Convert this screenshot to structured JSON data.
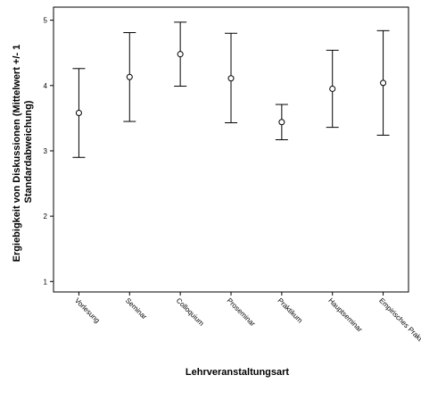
{
  "chart_data": {
    "type": "errorbar",
    "categories": [
      "Vorlesung",
      "Seminar",
      "Colloquium",
      "Proseminar",
      "Praktikum",
      "Hauptseminar",
      "Empirisches Prakt"
    ],
    "series": [
      {
        "mean": [
          3.58,
          4.13,
          4.48,
          4.11,
          3.44,
          3.95,
          4.04
        ],
        "lower": [
          2.9,
          3.45,
          3.99,
          3.43,
          3.17,
          3.36,
          3.24
        ],
        "upper": [
          4.26,
          4.81,
          4.97,
          4.8,
          3.71,
          4.54,
          4.84
        ]
      }
    ],
    "xlabel": "Lehrveranstaltungsart",
    "ylabel_lines": [
      "Ergiebigkeit von Diskussionen (Mittelwert +/- 1",
      "Standardabweichung)"
    ],
    "yticks": [
      1,
      2,
      3,
      4,
      5
    ],
    "ylim": [
      0.84,
      5.2
    ],
    "grid": false,
    "legend": "none"
  }
}
